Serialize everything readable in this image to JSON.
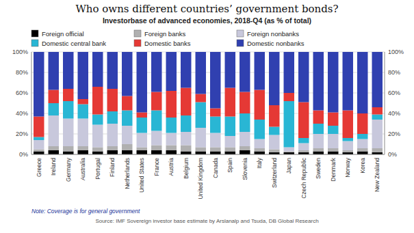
{
  "chart_data": {
    "type": "bar",
    "stacked": true,
    "title": "Who owns different countries’ government bonds?",
    "subtitle": "Investorbase of advanced economies, 2018-Q4 (as % of total)",
    "annotations": [
      "Note: Coverage is for general government",
      "Source: IMF Sovereign investor base estimate by Arslanalp and Tsuda, DB Global Research"
    ],
    "categories": [
      "Greece",
      "Ireland",
      "Germany",
      "Australia",
      "Portugal",
      "Finland",
      "Netherlands",
      "United States",
      "France",
      "Austria",
      "Belgium",
      "United Kingdom",
      "Canada",
      "Spain",
      "Slovenia",
      "Italy",
      "Switzerland",
      "Japan",
      "Czech Republic",
      "Sweden",
      "Denmark",
      "Norway",
      "Korea",
      "New Zealand"
    ],
    "series": [
      {
        "name": "Foreign official",
        "color": "#000000",
        "values": [
          3,
          4,
          3,
          4,
          3,
          4,
          4,
          4,
          4,
          4,
          3,
          3,
          3,
          3,
          4,
          3,
          2,
          2,
          2,
          3,
          3,
          2,
          3,
          2
        ]
      },
      {
        "name": "Foreign banks",
        "color": "#b0b0b0",
        "values": [
          2,
          4,
          5,
          4,
          4,
          4,
          6,
          3,
          5,
          5,
          6,
          4,
          4,
          4,
          4,
          3,
          3,
          1,
          2,
          3,
          3,
          2,
          3,
          4
        ]
      },
      {
        "name": "Foreign nonbanks",
        "color": "#c8c8dc",
        "values": [
          9,
          30,
          27,
          27,
          22,
          22,
          18,
          14,
          14,
          12,
          13,
          19,
          14,
          11,
          14,
          9,
          14,
          4,
          7,
          14,
          14,
          9,
          9,
          28
        ]
      },
      {
        "name": "Domestic central bank",
        "color": "#29b6d4",
        "values": [
          3,
          12,
          17,
          14,
          10,
          12,
          15,
          15,
          20,
          15,
          16,
          25,
          16,
          19,
          18,
          19,
          8,
          45,
          5,
          10,
          8,
          3,
          5,
          5
        ]
      },
      {
        "name": "Domestic banks",
        "color": "#e53935",
        "values": [
          20,
          13,
          12,
          5,
          27,
          22,
          14,
          5,
          18,
          26,
          27,
          8,
          8,
          28,
          21,
          29,
          21,
          8,
          35,
          13,
          13,
          27,
          20,
          7
        ]
      },
      {
        "name": "Domestic nonbanks",
        "color": "#3040b0",
        "values": [
          63,
          37,
          36,
          46,
          34,
          36,
          43,
          59,
          39,
          38,
          35,
          41,
          55,
          35,
          39,
          37,
          52,
          40,
          49,
          57,
          59,
          57,
          60,
          54
        ]
      }
    ],
    "ylim": [
      0,
      100
    ],
    "yticks": [
      {
        "value": 0,
        "label": "0%"
      },
      {
        "value": 20,
        "label": "20%"
      },
      {
        "value": 40,
        "label": "40%"
      },
      {
        "value": 60,
        "label": "60%"
      },
      {
        "value": 80,
        "label": "80%"
      },
      {
        "value": 100,
        "label": "100%"
      }
    ],
    "y2lim": [
      0,
      100
    ],
    "y2ticks": [
      {
        "value": 0,
        "label": "0%"
      },
      {
        "value": 20,
        "label": "20%"
      },
      {
        "value": 40,
        "label": "40%"
      },
      {
        "value": 60,
        "label": "60%"
      },
      {
        "value": 80,
        "label": "80%"
      },
      {
        "value": 100,
        "label": "100%"
      }
    ],
    "grid": true,
    "legend": "top"
  }
}
